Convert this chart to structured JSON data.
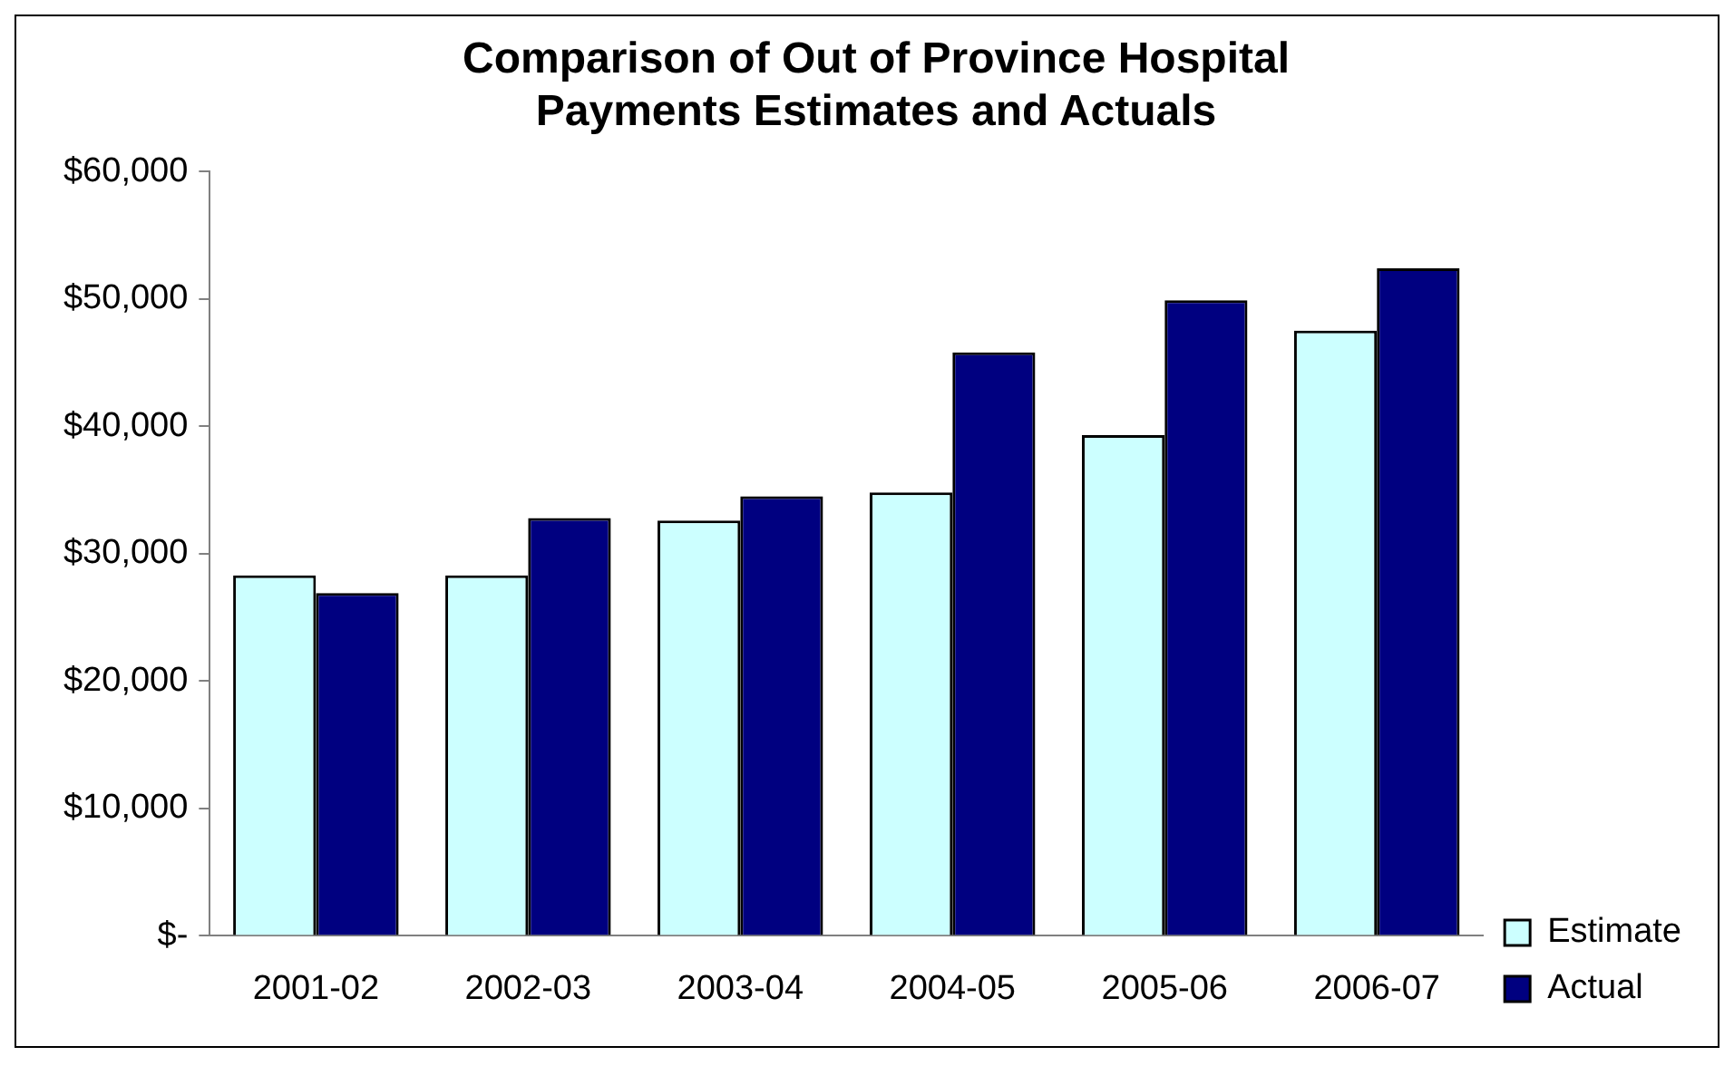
{
  "chart_data": {
    "type": "bar",
    "title": [
      "Comparison of Out of Province Hospital",
      "Payments Estimates and Actuals"
    ],
    "categories": [
      "2001-02",
      "2002-03",
      "2003-04",
      "2004-05",
      "2005-06",
      "2006-07"
    ],
    "series": [
      {
        "name": "Estimate",
        "color": "#ccffff",
        "values": [
          28300,
          28300,
          32600,
          34800,
          39300,
          47500
        ]
      },
      {
        "name": "Actual",
        "color": "#000080",
        "values": [
          26900,
          32800,
          34500,
          45800,
          49900,
          52400
        ]
      }
    ],
    "ylim": [
      0,
      60000
    ],
    "yticks": [
      {
        "value": 0,
        "label": "$-"
      },
      {
        "value": 10000,
        "label": "$10,000"
      },
      {
        "value": 20000,
        "label": "$20,000"
      },
      {
        "value": 30000,
        "label": "$30,000"
      },
      {
        "value": 40000,
        "label": "$40,000"
      },
      {
        "value": 50000,
        "label": "$50,000"
      },
      {
        "value": 60000,
        "label": "$60,000"
      }
    ],
    "grid": false,
    "legend": "bottom right"
  }
}
